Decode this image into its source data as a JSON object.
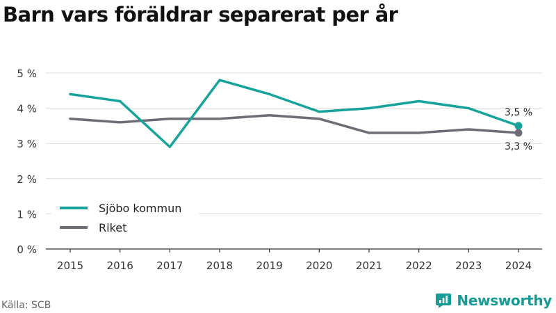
{
  "chart_data": {
    "type": "line",
    "title": "Barn vars föräldrar separerat per år",
    "xlabel": "",
    "ylabel": "",
    "x": [
      "2015",
      "2016",
      "2017",
      "2018",
      "2019",
      "2020",
      "2021",
      "2022",
      "2023",
      "2024"
    ],
    "ylim": [
      0,
      5
    ],
    "yticks": [
      0,
      1,
      2,
      3,
      4,
      5
    ],
    "ytick_labels": [
      "0 %",
      "1 %",
      "2 %",
      "3 %",
      "4 %",
      "5 %"
    ],
    "grid": true,
    "legend_position": "bottom-left",
    "series": [
      {
        "name": "Sjöbo kommun",
        "color": "#16a39b",
        "values": [
          4.4,
          4.2,
          2.9,
          4.8,
          4.4,
          3.9,
          4.0,
          4.2,
          4.0,
          3.5
        ],
        "end_label": "3,5 %"
      },
      {
        "name": "Riket",
        "color": "#6e6c76",
        "values": [
          3.7,
          3.6,
          3.7,
          3.7,
          3.8,
          3.7,
          3.3,
          3.3,
          3.4,
          3.3
        ],
        "end_label": "3,3 %"
      }
    ]
  },
  "footer": {
    "source": "Källa: SCB",
    "brand": "Newsworthy",
    "brand_icon": "newsworthy-logo-icon",
    "brand_color": "#179b96"
  }
}
